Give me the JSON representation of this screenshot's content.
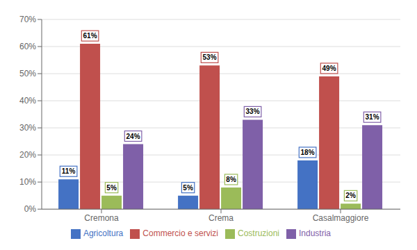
{
  "chart_data": {
    "type": "bar",
    "categories": [
      "Cremona",
      "Crema",
      "Casalmaggiore"
    ],
    "series": [
      {
        "name": "Agricoltura",
        "color": "#4472C4",
        "values": [
          11,
          5,
          18
        ],
        "value_labels": [
          "11%",
          "5%",
          "18%"
        ]
      },
      {
        "name": "Commercio e servizi",
        "color": "#C0504D",
        "values": [
          61,
          53,
          49
        ],
        "value_labels": [
          "61%",
          "53%",
          "49%"
        ]
      },
      {
        "name": "Costruzioni",
        "color": "#9BBB59",
        "values": [
          5,
          8,
          2
        ],
        "value_labels": [
          "5%",
          "8%",
          "2%"
        ]
      },
      {
        "name": "Industria",
        "color": "#7F60A8",
        "values": [
          24,
          33,
          31
        ],
        "value_labels": [
          "24%",
          "33%",
          "31%"
        ]
      }
    ],
    "ylim": [
      0,
      70
    ],
    "yticks": [
      {
        "value": 0,
        "label": "0%"
      },
      {
        "value": 10,
        "label": "10%"
      },
      {
        "value": 20,
        "label": "20%"
      },
      {
        "value": 30,
        "label": "30%"
      },
      {
        "value": 40,
        "label": "40%"
      },
      {
        "value": 50,
        "label": "50%"
      },
      {
        "value": 60,
        "label": "60%"
      },
      {
        "value": 70,
        "label": "70%"
      }
    ],
    "grid": true,
    "legend": "bottom",
    "data_labels": true
  }
}
